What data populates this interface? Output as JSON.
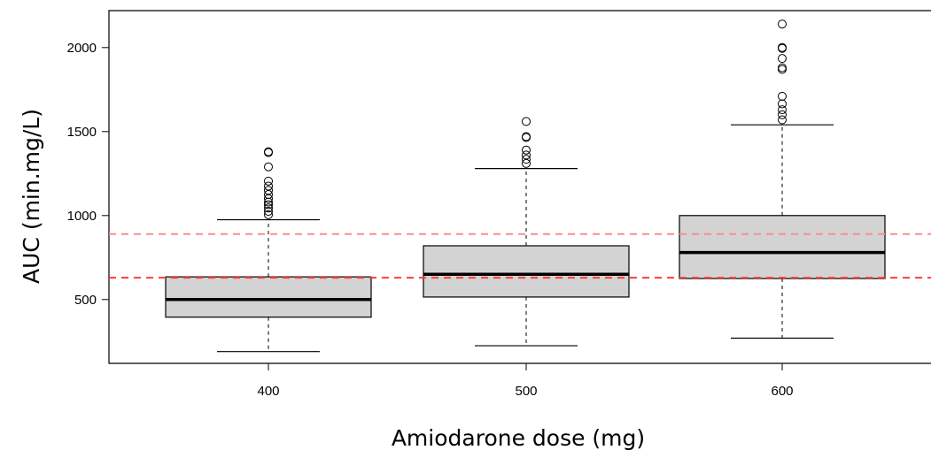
{
  "chart_data": {
    "type": "box",
    "title": "",
    "xlabel": "Amiodarone dose (mg)",
    "ylabel": "AUC (min.mg/L)",
    "categories": [
      "400",
      "500",
      "600"
    ],
    "ylim": [
      120,
      2220
    ],
    "yticks": [
      500,
      1000,
      1500,
      2000
    ],
    "grid": false,
    "boxes": [
      {
        "category": "400",
        "whisker_low": 190,
        "q1": 395,
        "median": 500,
        "q3": 635,
        "whisker_high": 975,
        "outliers": [
          1005,
          1025,
          1045,
          1065,
          1080,
          1100,
          1125,
          1150,
          1175,
          1205,
          1290,
          1375,
          1380
        ]
      },
      {
        "category": "500",
        "whisker_low": 225,
        "q1": 515,
        "median": 650,
        "q3": 820,
        "whisker_high": 1280,
        "outliers": [
          1310,
          1335,
          1360,
          1390,
          1465,
          1470,
          1560
        ]
      },
      {
        "category": "600",
        "whisker_low": 270,
        "q1": 625,
        "median": 780,
        "q3": 1000,
        "whisker_high": 1540,
        "outliers": [
          1570,
          1600,
          1630,
          1665,
          1710,
          1870,
          1880,
          1935,
          1995,
          2000,
          2140
        ]
      }
    ],
    "reference_lines": [
      {
        "value": 890,
        "color": "#ff8c8c",
        "style": "dashed"
      },
      {
        "value": 630,
        "color": "#ff3b3b",
        "style": "dashed"
      }
    ],
    "colors": {
      "box_fill": "#d3d3d3",
      "stroke": "#000000"
    }
  }
}
